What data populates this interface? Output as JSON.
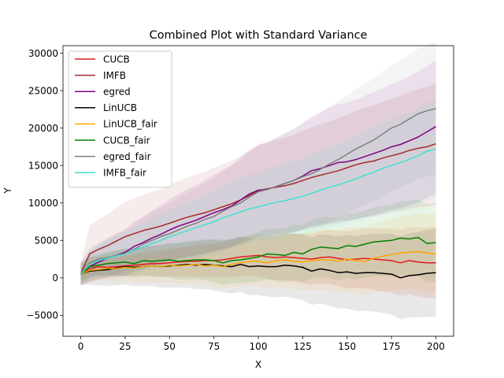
{
  "chart_data": {
    "type": "line",
    "title": "Combined Plot with Standard Variance",
    "xlabel": "X",
    "ylabel": "Y",
    "xlim": [
      -10,
      210
    ],
    "ylim": [
      -7800,
      31000
    ],
    "xticks": [
      0,
      25,
      50,
      75,
      100,
      125,
      150,
      175,
      200
    ],
    "yticks": [
      -5000,
      0,
      5000,
      10000,
      15000,
      20000,
      25000,
      30000
    ],
    "xtick_labels": [
      "0",
      "25",
      "50",
      "75",
      "100",
      "125",
      "150",
      "175",
      "200"
    ],
    "ytick_labels": [
      "−5000",
      "0",
      "5000",
      "10000",
      "15000",
      "20000",
      "25000",
      "30000"
    ],
    "legend_position": "upper-left",
    "grid": false,
    "shaded_band": "mean ± standard deviation per series",
    "x": [
      0,
      5,
      10,
      15,
      20,
      25,
      30,
      35,
      40,
      45,
      50,
      55,
      60,
      65,
      70,
      75,
      80,
      85,
      90,
      95,
      100,
      105,
      110,
      115,
      120,
      125,
      130,
      135,
      140,
      145,
      150,
      155,
      160,
      165,
      170,
      175,
      180,
      185,
      190,
      195,
      200
    ],
    "series": [
      {
        "name": "CUCB",
        "color": "#e01b1b",
        "values": [
          500,
          1200,
          1500,
          1400,
          1500,
          1600,
          1700,
          1800,
          1900,
          1900,
          2000,
          2100,
          2200,
          2200,
          2300,
          2300,
          2400,
          2600,
          2800,
          2900,
          3000,
          2800,
          2700,
          2800,
          2700,
          2600,
          2500,
          2700,
          2800,
          2600,
          2400,
          2500,
          2600,
          2500,
          2400,
          2300,
          2000,
          2300,
          2100,
          2000,
          2000
        ],
        "sd": [
          800,
          900,
          1000,
          1100,
          1200,
          1300,
          1400,
          1500,
          1600,
          1700,
          1800,
          1900,
          2000,
          2100,
          2200,
          2300,
          2400,
          2500,
          2600,
          2700,
          2800,
          2900,
          3000,
          3100,
          3200,
          3300,
          3400,
          3500,
          3600,
          3700,
          3800,
          3900,
          4000,
          4100,
          4200,
          4300,
          4400,
          4500,
          4600,
          4700,
          4800
        ]
      },
      {
        "name": "IMFB",
        "color": "#a52a2a",
        "values": [
          500,
          3200,
          3800,
          4300,
          4900,
          5500,
          5900,
          6300,
          6600,
          6900,
          7300,
          7700,
          8100,
          8400,
          8700,
          9100,
          9500,
          9900,
          10400,
          11000,
          11600,
          11900,
          12100,
          12300,
          12600,
          13000,
          13400,
          13700,
          14000,
          14300,
          14700,
          15100,
          15400,
          15600,
          16000,
          16300,
          16600,
          17000,
          17300,
          17500,
          17900
        ],
        "sd": [
          1500,
          3800,
          4000,
          4200,
          4400,
          4600,
          4700,
          4800,
          4900,
          5000,
          5100,
          5200,
          5300,
          5400,
          5500,
          5600,
          5700,
          5800,
          5900,
          6000,
          6100,
          6200,
          6300,
          6400,
          6500,
          6600,
          6700,
          6800,
          6900,
          7000,
          7100,
          7200,
          7300,
          7400,
          7500,
          7600,
          7700,
          7800,
          7900,
          8000,
          8100
        ]
      },
      {
        "name": "egred",
        "color": "#800080",
        "values": [
          500,
          1500,
          2100,
          2600,
          3000,
          3400,
          4200,
          4700,
          5300,
          5800,
          6400,
          6900,
          7300,
          7700,
          8200,
          8700,
          9100,
          9600,
          10400,
          11200,
          11700,
          11800,
          12200,
          12600,
          13000,
          13600,
          14300,
          14600,
          15000,
          15400,
          15500,
          15800,
          16200,
          16600,
          17000,
          17500,
          17800,
          18300,
          18800,
          19500,
          20200
        ],
        "sd": [
          1500,
          2000,
          2300,
          2600,
          2900,
          3100,
          3300,
          3500,
          3700,
          3900,
          4100,
          4300,
          4500,
          4700,
          4900,
          5100,
          5300,
          5500,
          5700,
          5900,
          6100,
          6300,
          6500,
          6700,
          6900,
          7100,
          7300,
          7500,
          7700,
          7800,
          7900,
          8000,
          8100,
          8200,
          8300,
          8400,
          8500,
          8600,
          8700,
          8800,
          8900
        ]
      },
      {
        "name": "LinUCB",
        "color": "#000000",
        "values": [
          500,
          900,
          1000,
          1100,
          1300,
          1500,
          1400,
          1500,
          1600,
          1500,
          1600,
          1700,
          1800,
          1700,
          1800,
          1700,
          1600,
          1500,
          1800,
          1500,
          1600,
          1500,
          1500,
          1700,
          1600,
          1400,
          900,
          1200,
          1000,
          700,
          800,
          600,
          700,
          700,
          600,
          500,
          0,
          300,
          400,
          600,
          700
        ],
        "sd": [
          1500,
          1800,
          2000,
          2200,
          2300,
          2400,
          2500,
          2600,
          2700,
          2800,
          2900,
          3000,
          3100,
          3200,
          3300,
          3400,
          3500,
          3600,
          3700,
          3800,
          3900,
          4000,
          4100,
          4200,
          4300,
          4400,
          4500,
          4600,
          4700,
          4800,
          4900,
          5000,
          5100,
          5200,
          5300,
          5400,
          5500,
          5600,
          5700,
          5800,
          5900
        ]
      },
      {
        "name": "LinUCB_fair",
        "color": "#ffa500",
        "values": [
          500,
          1000,
          1100,
          1300,
          1200,
          1400,
          1300,
          1500,
          1600,
          1500,
          1700,
          1600,
          1700,
          1800,
          1600,
          1700,
          1500,
          1800,
          2000,
          2200,
          2200,
          2000,
          2300,
          2400,
          2200,
          2100,
          2300,
          2400,
          2400,
          2200,
          2500,
          2300,
          2200,
          2600,
          2900,
          3100,
          3300,
          3400,
          3500,
          3300,
          3200
        ],
        "sd": [
          1200,
          1400,
          1500,
          1600,
          1700,
          1800,
          1900,
          2000,
          2100,
          2200,
          2300,
          2400,
          2500,
          2600,
          2700,
          2800,
          2900,
          3000,
          3100,
          3200,
          3300,
          3400,
          3500,
          3600,
          3700,
          3800,
          3900,
          4000,
          4100,
          4200,
          4300,
          4400,
          4500,
          4600,
          4700,
          4800,
          4900,
          5000,
          5100,
          5200,
          5300
        ]
      },
      {
        "name": "CUCB_fair",
        "color": "#008000",
        "values": [
          500,
          1500,
          1700,
          1900,
          2000,
          2100,
          1900,
          2300,
          2200,
          2300,
          2400,
          2200,
          2300,
          2400,
          2400,
          2300,
          2000,
          2300,
          2400,
          2600,
          2800,
          3200,
          3100,
          3000,
          3400,
          3200,
          3800,
          4100,
          4000,
          3900,
          4300,
          4200,
          4500,
          4800,
          4900,
          5000,
          5300,
          5200,
          5400,
          4600,
          4700
        ],
        "sd": [
          1200,
          1400,
          1500,
          1600,
          1700,
          1800,
          1900,
          2000,
          2100,
          2200,
          2300,
          2400,
          2500,
          2600,
          2700,
          2800,
          2900,
          3000,
          3100,
          3200,
          3300,
          3400,
          3500,
          3600,
          3700,
          3800,
          3900,
          4000,
          4100,
          4200,
          4300,
          4400,
          4500,
          4600,
          4700,
          4800,
          4900,
          5000,
          5100,
          5200,
          5300
        ]
      },
      {
        "name": "egred_fair",
        "color": "#808080",
        "values": [
          500,
          2000,
          2500,
          2700,
          3000,
          3200,
          3800,
          4500,
          5000,
          5500,
          5900,
          6400,
          6900,
          7300,
          7800,
          8200,
          8900,
          9500,
          10000,
          10800,
          11500,
          11800,
          12200,
          12600,
          13000,
          13500,
          13900,
          14500,
          15200,
          15800,
          16500,
          17200,
          17800,
          18400,
          19200,
          20000,
          20500,
          21200,
          21900,
          22300,
          22600
        ],
        "sd": [
          1500,
          2000,
          2300,
          2600,
          2900,
          3100,
          3300,
          3500,
          3700,
          3900,
          4100,
          4300,
          4500,
          4700,
          4900,
          5100,
          5300,
          5500,
          5700,
          5900,
          6100,
          6300,
          6500,
          6700,
          6900,
          7100,
          7300,
          7500,
          7700,
          7800,
          7900,
          8000,
          8100,
          8200,
          8300,
          8400,
          8500,
          8600,
          8700,
          8800,
          8900
        ]
      },
      {
        "name": "IMFB_fair",
        "color": "#40e0d0",
        "values": [
          500,
          1800,
          2300,
          2600,
          2900,
          3200,
          3700,
          4100,
          4600,
          5000,
          5500,
          5900,
          6300,
          6700,
          7100,
          7500,
          8000,
          8400,
          8800,
          9200,
          9500,
          9800,
          10100,
          10300,
          10600,
          10900,
          11300,
          11700,
          12100,
          12400,
          12800,
          13200,
          13700,
          14100,
          14600,
          15000,
          15400,
          15800,
          16300,
          16900,
          17200
        ],
        "sd": [
          1200,
          2000,
          2200,
          2400,
          2600,
          2800,
          3000,
          3200,
          3400,
          3500,
          3600,
          3700,
          3800,
          3900,
          4000,
          4100,
          4200,
          4300,
          4400,
          4500,
          4600,
          4700,
          4800,
          4900,
          5000,
          5100,
          5200,
          5300,
          5400,
          5500,
          5600,
          5700,
          5800,
          5900,
          6000,
          6100,
          6200,
          6300,
          6400,
          6500,
          6600
        ]
      }
    ]
  }
}
